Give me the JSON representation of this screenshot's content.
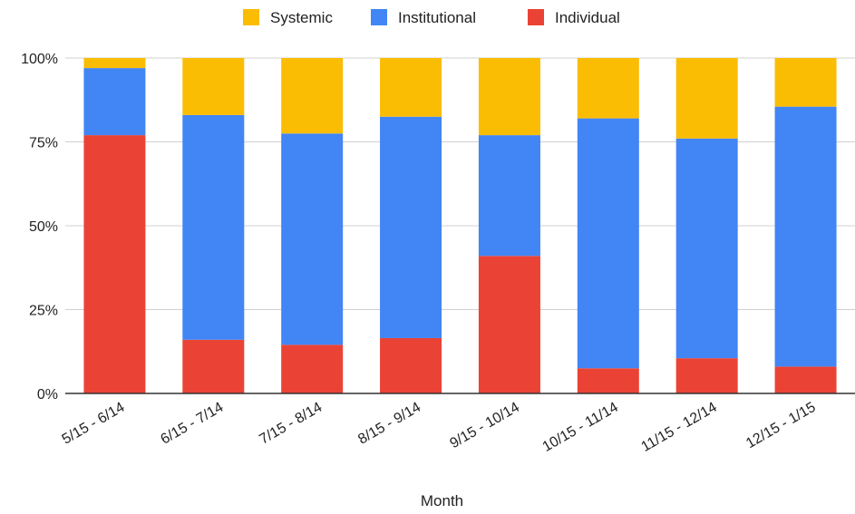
{
  "chart_data": {
    "type": "bar",
    "stacked": true,
    "normalized": true,
    "title": "",
    "xlabel": "Month",
    "ylabel": "",
    "ylim": [
      0,
      100
    ],
    "yticks": [
      "0%",
      "25%",
      "50%",
      "75%",
      "100%"
    ],
    "grid": true,
    "legend_position": "top",
    "categories": [
      "5/15 - 6/14",
      "6/15 - 7/14",
      "7/15 - 8/14",
      "8/15 - 9/14",
      "9/15 - 10/14",
      "10/15 - 11/14",
      "11/15 - 12/14",
      "12/15 - 1/15"
    ],
    "series": [
      {
        "name": "Individual",
        "color": "#ea4335",
        "values": [
          77,
          16,
          14.5,
          16.5,
          41,
          7.5,
          10.5,
          8
        ]
      },
      {
        "name": "Institutional",
        "color": "#4285f4",
        "values": [
          20,
          67,
          63,
          66,
          36,
          74.5,
          65.5,
          77.5
        ]
      },
      {
        "name": "Systemic",
        "color": "#fbbc04",
        "values": [
          3,
          17,
          22.5,
          17.5,
          23,
          18,
          24,
          14.5
        ]
      }
    ],
    "legend_order": [
      "Systemic",
      "Institutional",
      "Individual"
    ]
  }
}
